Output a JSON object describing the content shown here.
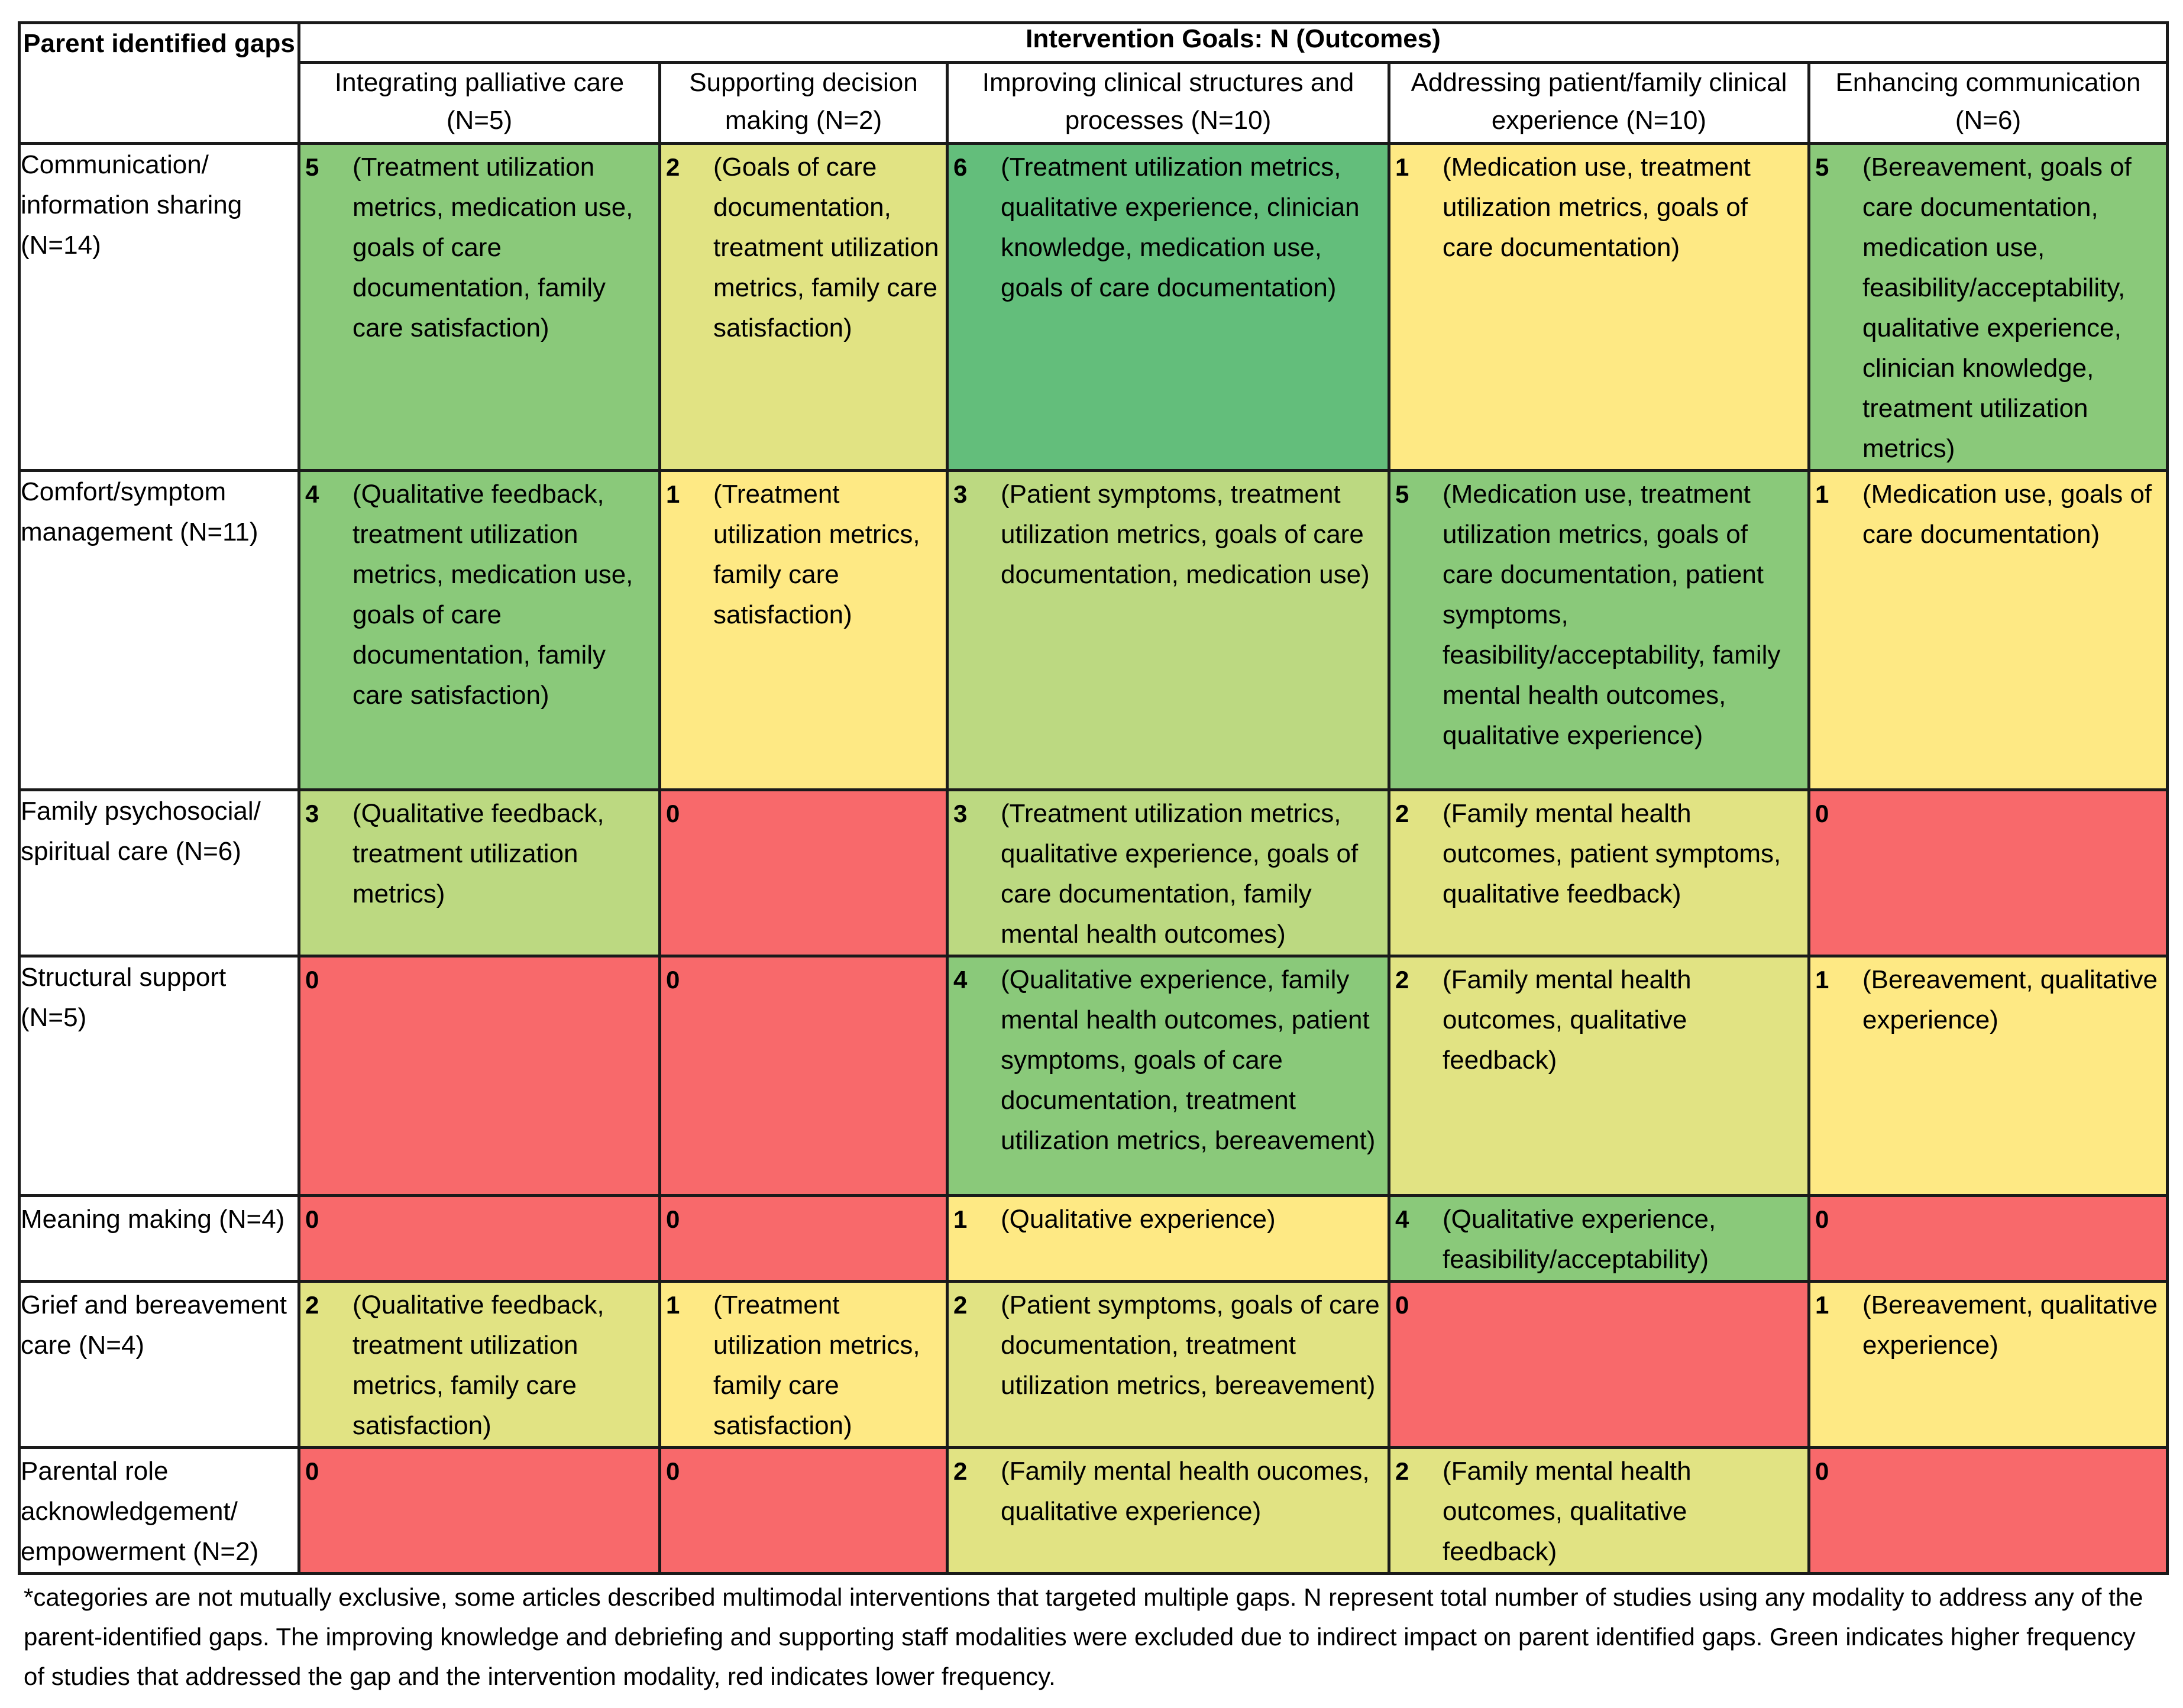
{
  "table": {
    "corner_label": "Parent identified gaps",
    "goals_header": "Intervention Goals: N (Outcomes)",
    "columns": [
      "Integrating palliative care (N=5)",
      "Supporting decision making (N=2)",
      "Improving clinical structures and processes (N=10)",
      "Addressing patient/family clinical experience (N=10)",
      "Enhancing communication (N=6)"
    ],
    "rows": [
      {
        "label": "Communication/ information sharing (N=14)",
        "cells": [
          {
            "count": "5",
            "outcomes": "(Treatment utilization metrics, medication use, goals of care documentation, family care satisfaction)",
            "color": "#8ac97a"
          },
          {
            "count": "2",
            "outcomes": "(Goals of care documentation, treatment utilization metrics, family care satisfaction)",
            "color": "#e1e383"
          },
          {
            "count": "6",
            "outcomes": "(Treatment utilization metrics, qualitative experience, clinician knowledge, medication use, goals of care documentation)",
            "color": "#63be7b"
          },
          {
            "count": "1",
            "outcomes": "(Medication use, treatment utilization metrics, goals of care documentation)",
            "color": "#fee984"
          },
          {
            "count": "5",
            "outcomes": "(Bereavement, goals of care documentation, medication use, feasibility/acceptability, qualitative experience, clinician knowledge, treatment utilization metrics)",
            "color": "#8ac97a"
          }
        ]
      },
      {
        "label": "Comfort/symptom management (N=11)",
        "cells": [
          {
            "count": "4",
            "outcomes": "(Qualitative feedback, treatment utilization metrics, medication use, goals of care documentation, family care satisfaction)",
            "color": "#8ac97a"
          },
          {
            "count": "1",
            "outcomes": "(Treatment utilization metrics, family care satisfaction)",
            "color": "#fee984"
          },
          {
            "count": "3",
            "outcomes": "(Patient symptoms, treatment utilization metrics, goals of care documentation, medication use)",
            "color": "#bcd981"
          },
          {
            "count": "5",
            "outcomes": "(Medication use, treatment utilization metrics, goals of care documentation, patient symptoms, feasibility/acceptability, family mental health outcomes, qualitative experience)",
            "color": "#8ac97a"
          },
          {
            "count": "1",
            "outcomes": "(Medication use, goals of care documentation)",
            "color": "#fee984"
          }
        ]
      },
      {
        "label": "Family psychosocial/ spiritual care (N=6)",
        "cells": [
          {
            "count": "3",
            "outcomes": "(Qualitative feedback, treatment utilization metrics)",
            "color": "#bcd981"
          },
          {
            "count": "0",
            "outcomes": "",
            "color": "#f8696b"
          },
          {
            "count": "3",
            "outcomes": "(Treatment utilization metrics, qualitative experience, goals of care documentation, family mental health outcomes)",
            "color": "#bcd981"
          },
          {
            "count": "2",
            "outcomes": "(Family mental health outcomes, patient symptoms, qualitative feedback)",
            "color": "#e1e383"
          },
          {
            "count": "0",
            "outcomes": "",
            "color": "#f8696b"
          }
        ]
      },
      {
        "label": "Structural support (N=5)",
        "cells": [
          {
            "count": "0",
            "outcomes": "",
            "color": "#f8696b"
          },
          {
            "count": "0",
            "outcomes": "",
            "color": "#f8696b"
          },
          {
            "count": "4",
            "outcomes": "(Qualitative experience, family mental health outcomes, patient symptoms, goals of care documentation, treatment utilization metrics, bereavement)",
            "color": "#8ac97a"
          },
          {
            "count": "2",
            "outcomes": "(Family mental health outcomes, qualitative feedback)",
            "color": "#e1e383"
          },
          {
            "count": "1",
            "outcomes": "(Bereavement, qualitative experience)",
            "color": "#fee984"
          }
        ]
      },
      {
        "label": "Meaning making (N=4)",
        "cells": [
          {
            "count": "0",
            "outcomes": "",
            "color": "#f8696b"
          },
          {
            "count": "0",
            "outcomes": "",
            "color": "#f8696b"
          },
          {
            "count": "1",
            "outcomes": "(Qualitative experience)",
            "color": "#fee984"
          },
          {
            "count": "4",
            "outcomes": "(Qualitative experience, feasibility/acceptability)",
            "color": "#8ac97a"
          },
          {
            "count": "0",
            "outcomes": "",
            "color": "#f8696b"
          }
        ]
      },
      {
        "label": "Grief and bereavement care (N=4)",
        "cells": [
          {
            "count": "2",
            "outcomes": "(Qualitative feedback, treatment utilization metrics, family care satisfaction)",
            "color": "#e1e383"
          },
          {
            "count": "1",
            "outcomes": "(Treatment utilization metrics, family care satisfaction)",
            "color": "#fee984"
          },
          {
            "count": "2",
            "outcomes": "(Patient symptoms, goals of care documentation, treatment utilization metrics, bereavement)",
            "color": "#e1e383"
          },
          {
            "count": "0",
            "outcomes": "",
            "color": "#f8696b"
          },
          {
            "count": "1",
            "outcomes": "(Bereavement, qualitative experience)",
            "color": "#fee984"
          }
        ]
      },
      {
        "label": "Parental role acknowledgement/ empowerment (N=2)",
        "cells": [
          {
            "count": "0",
            "outcomes": "",
            "color": "#f8696b"
          },
          {
            "count": "0",
            "outcomes": "",
            "color": "#f8696b"
          },
          {
            "count": "2",
            "outcomes": "(Family mental health oucomes, qualitative experience)",
            "color": "#e1e383"
          },
          {
            "count": "2",
            "outcomes": "(Family mental health outcomes, qualitative feedback)",
            "color": "#e1e383"
          },
          {
            "count": "0",
            "outcomes": "",
            "color": "#f8696b"
          }
        ]
      }
    ]
  },
  "footnote": "*categories are not mutually exclusive, some articles described multimodal interventions that targeted multiple gaps. N represent total number of studies using any modality to address any of the parent-identified gaps. The improving knowledge and debriefing and supporting staff modalities were excluded due to indirect impact on parent identified gaps. Green indicates higher frequency of studies that addressed the gap and the intervention modality, red indicates lower frequency."
}
